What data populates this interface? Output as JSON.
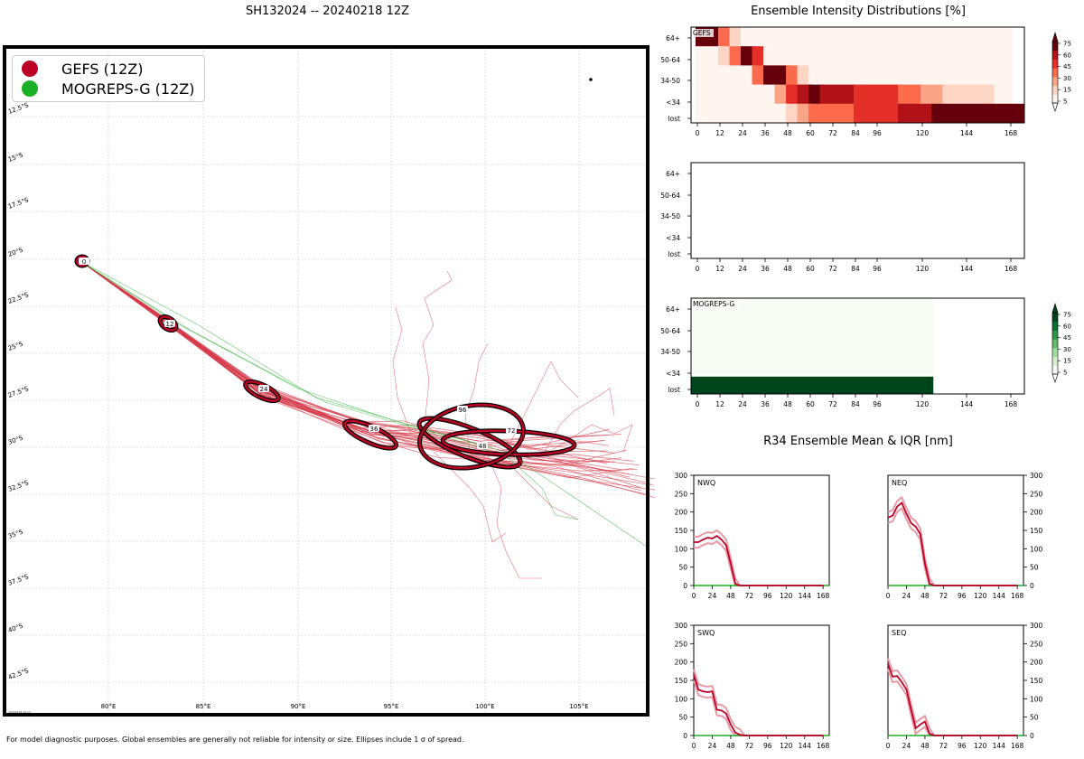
{
  "page_title": "SH132024 -- 20240218 12Z",
  "footnote": "For model diagnostic purposes. Global ensembles are generally not reliable for intensity or size. Ellipses include 1 σ of spread.",
  "map": {
    "timestamp": "20240218 20:13",
    "lon_ticks": [
      "80°E",
      "85°E",
      "90°E",
      "95°E",
      "100°E",
      "105°E"
    ],
    "lat_ticks": [
      "12.5°S",
      "15°S",
      "17.5°S",
      "20°S",
      "22.5°S",
      "25°S",
      "27.5°S",
      "30°S",
      "32.5°S",
      "35°S",
      "37.5°S",
      "40°S",
      "42.5°S"
    ],
    "legend": [
      {
        "label": "GEFS (12Z)",
        "color": "#bd0026"
      },
      {
        "label": "MOGREPS-G (12Z)",
        "color": "#1aaf24"
      }
    ],
    "forecast_hour_labels": [
      "0",
      "12",
      "24",
      "36",
      "48",
      "72",
      "96"
    ]
  },
  "chart_data": [
    {
      "type": "heatmap",
      "title": "Ensemble Intensity Distributions [%]",
      "panel_label": "GEFS",
      "rows": [
        "64+",
        "50-64",
        "34-50",
        "<34",
        "lost"
      ],
      "x_ticks": [
        "0",
        "12",
        "24",
        "36",
        "48",
        "60",
        "72",
        "84",
        "96",
        "120",
        "144",
        "168"
      ],
      "colorbar_ticks": [
        "75",
        "60",
        "45",
        "30",
        "15",
        "5"
      ],
      "colormap": "Reds"
    },
    {
      "type": "heatmap",
      "panel_label": "",
      "rows": [
        "64+",
        "50-64",
        "34-50",
        "<34",
        "lost"
      ],
      "x_ticks": [
        "0",
        "12",
        "24",
        "36",
        "48",
        "60",
        "72",
        "84",
        "96",
        "120",
        "144",
        "168"
      ]
    },
    {
      "type": "heatmap",
      "panel_label": "MOGREPS-G",
      "rows": [
        "64+",
        "50-64",
        "34-50",
        "<34",
        "lost"
      ],
      "x_ticks": [
        "0",
        "12",
        "24",
        "36",
        "48",
        "60",
        "72",
        "84",
        "96",
        "120",
        "144",
        "168"
      ],
      "colorbar_ticks": [
        "75",
        "60",
        "45",
        "30",
        "15",
        "5"
      ],
      "colormap": "Greens"
    },
    {
      "type": "line",
      "title": "R34 Ensemble Mean & IQR [nm]",
      "subplots": [
        {
          "name": "NWQ",
          "x": [
            0,
            6,
            12,
            18,
            24,
            30,
            36,
            42,
            48,
            54,
            60,
            66,
            72,
            96,
            120,
            144,
            168
          ],
          "mean": [
            118,
            118,
            125,
            130,
            128,
            135,
            125,
            110,
            60,
            5,
            0,
            0,
            0,
            0,
            0,
            0,
            0
          ],
          "ylim": [
            0,
            300
          ],
          "y_ticks": [
            "0",
            "50",
            "100",
            "150",
            "200",
            "250",
            "300"
          ],
          "x_ticks": [
            "0",
            "24",
            "48",
            "72",
            "96",
            "120",
            "144",
            "168"
          ]
        },
        {
          "name": "NEQ",
          "x": [
            0,
            6,
            12,
            18,
            24,
            30,
            36,
            42,
            48,
            54,
            60,
            66,
            72,
            96,
            120,
            144,
            168
          ],
          "mean": [
            185,
            190,
            215,
            225,
            195,
            170,
            160,
            140,
            60,
            5,
            0,
            0,
            0,
            0,
            0,
            0,
            0
          ],
          "ylim": [
            0,
            300
          ],
          "y_ticks": [
            "0",
            "50",
            "100",
            "150",
            "200",
            "250",
            "300"
          ],
          "x_ticks": [
            "0",
            "24",
            "48",
            "72",
            "96",
            "120",
            "144",
            "168"
          ]
        },
        {
          "name": "SWQ",
          "x": [
            0,
            6,
            12,
            18,
            24,
            30,
            36,
            42,
            48,
            54,
            60,
            66,
            72,
            96,
            120,
            144,
            168
          ],
          "mean": [
            165,
            125,
            120,
            118,
            120,
            70,
            68,
            60,
            30,
            8,
            2,
            0,
            0,
            0,
            0,
            0,
            0
          ],
          "ylim": [
            0,
            300
          ],
          "y_ticks": [
            "0",
            "50",
            "100",
            "150",
            "200",
            "250",
            "300"
          ],
          "x_ticks": [
            "0",
            "24",
            "48",
            "72",
            "96",
            "120",
            "144",
            "168"
          ]
        },
        {
          "name": "SEQ",
          "x": [
            0,
            6,
            12,
            18,
            24,
            30,
            36,
            42,
            48,
            54,
            60,
            66,
            72,
            96,
            120,
            144,
            168
          ],
          "mean": [
            195,
            160,
            162,
            145,
            125,
            70,
            20,
            30,
            38,
            5,
            0,
            0,
            0,
            0,
            0,
            0,
            0
          ],
          "ylim": [
            0,
            300
          ],
          "y_ticks": [
            "0",
            "50",
            "100",
            "150",
            "200",
            "250",
            "300"
          ],
          "x_ticks": [
            "0",
            "24",
            "48",
            "72",
            "96",
            "120",
            "144",
            "168"
          ]
        }
      ]
    }
  ]
}
